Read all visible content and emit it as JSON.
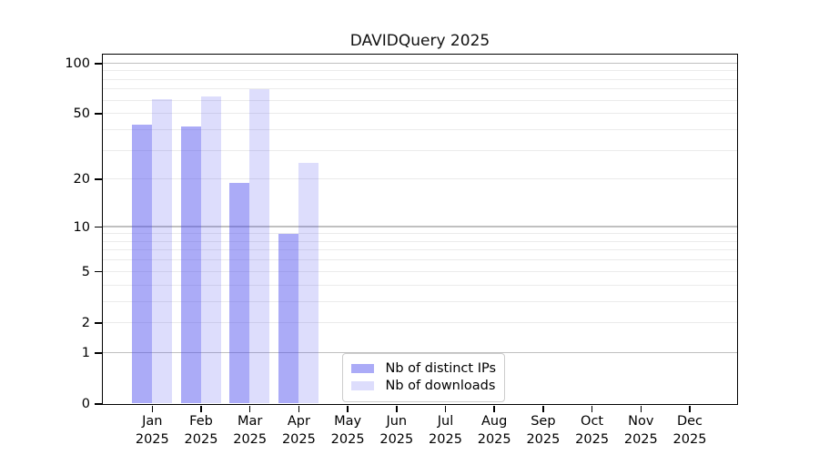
{
  "chart_data": {
    "type": "bar",
    "title": "DAVIDQuery 2025",
    "categories": [
      "Jan",
      "Feb",
      "Mar",
      "Apr",
      "May",
      "Jun",
      "Jul",
      "Aug",
      "Sep",
      "Oct",
      "Nov",
      "Dec"
    ],
    "year_label": "2025",
    "series": [
      {
        "name": "Nb of distinct IPs",
        "values": [
          43,
          42,
          19,
          9,
          null,
          null,
          null,
          null,
          null,
          null,
          null,
          null
        ]
      },
      {
        "name": "Nb of downloads",
        "values": [
          61,
          63,
          70,
          25,
          null,
          null,
          null,
          null,
          null,
          null,
          null,
          null
        ]
      }
    ],
    "yscale": "log1p",
    "ylim": [
      0,
      113
    ],
    "yticks": [
      0,
      1,
      2,
      5,
      10,
      20,
      50,
      100
    ],
    "ytick_labels": [
      "0",
      "1",
      "2",
      "5",
      "10",
      "20",
      "50",
      "100"
    ],
    "major_gridlines": [
      1,
      10,
      100
    ],
    "minor_gridlines": [
      2,
      3,
      4,
      5,
      6,
      7,
      8,
      9,
      20,
      30,
      40,
      50,
      60,
      70,
      80,
      90
    ],
    "grid": true,
    "xlabel": "",
    "ylabel": "",
    "legend": {
      "position": "lower center",
      "entries": [
        "Nb of distinct IPs",
        "Nb of downloads"
      ]
    }
  },
  "colors": {
    "series_bar": [
      "rgba(68,68,238,0.45)",
      "rgba(68,68,238,0.18)"
    ],
    "major_grid": "#c0c0c0",
    "minor_grid": "#ebebeb",
    "axis_spine": "#000000",
    "legend_border": "#cccccc",
    "background": "#ffffff"
  }
}
